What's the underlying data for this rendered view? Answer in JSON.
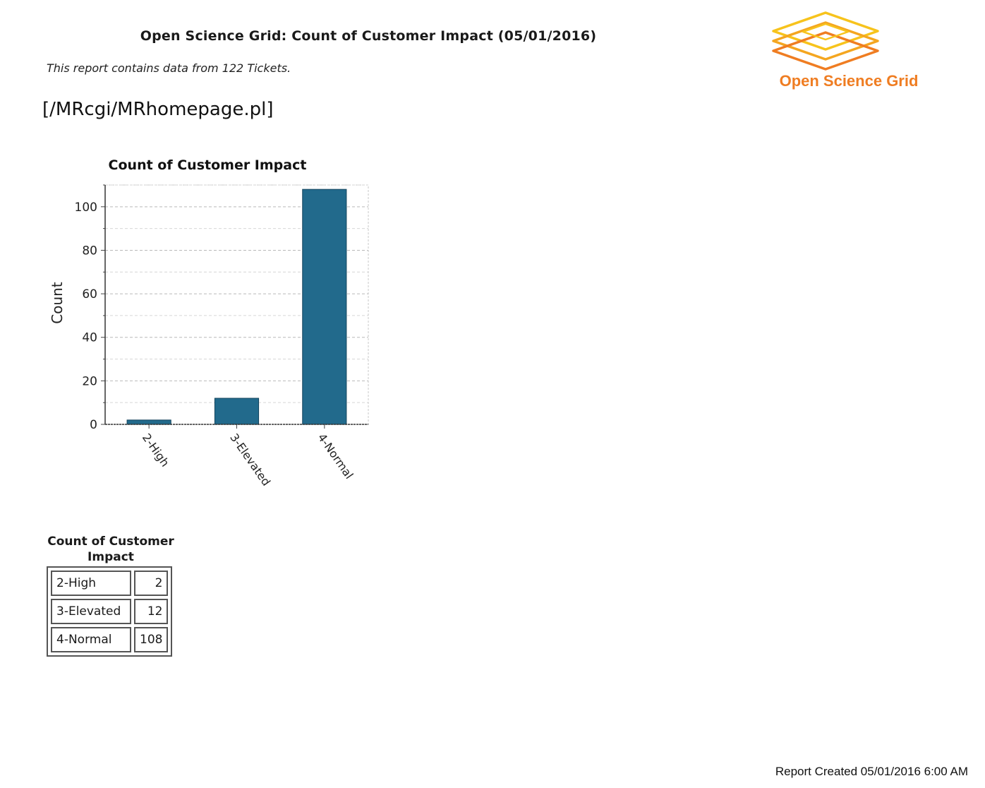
{
  "header": {
    "title": "Open Science Grid: Count of Customer Impact (05/01/2016)",
    "subtitle": "This report contains data from 122 Tickets.",
    "logo_text": "Open Science Grid"
  },
  "link_text": "[/MRcgi/MRhomepage.pl]",
  "chart_data": {
    "type": "bar",
    "title": "Count of Customer Impact",
    "xlabel": "",
    "ylabel": "Count",
    "categories": [
      "2-High",
      "3-Elevated",
      "4-Normal"
    ],
    "values": [
      2,
      12,
      108
    ],
    "ylim": [
      0,
      110
    ],
    "yticks": [
      0,
      20,
      40,
      60,
      80,
      100
    ],
    "grid": true,
    "bar_color": "#226a8c"
  },
  "table": {
    "caption": "Count of Customer Impact",
    "rows": [
      {
        "label": "2-High",
        "value": "2"
      },
      {
        "label": "3-Elevated",
        "value": "12"
      },
      {
        "label": "4-Normal",
        "value": "108"
      }
    ]
  },
  "footer": "Report Created 05/01/2016 6:00 AM",
  "colors": {
    "logo_top": "#f7c31c",
    "logo_bottom": "#ef7d22"
  }
}
